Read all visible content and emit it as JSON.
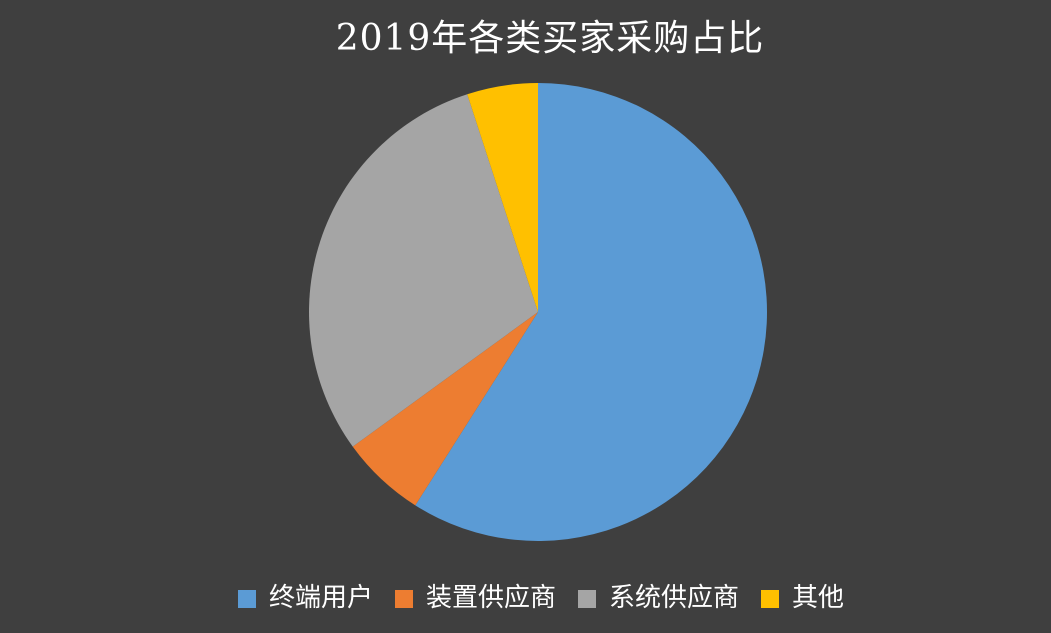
{
  "page": {
    "background_color": "#3F3F3F",
    "text_color": "#FFFFFF"
  },
  "chart_data": {
    "type": "pie",
    "title": "2019年各类买家采购占比",
    "labels": [
      "终端用户",
      "装置供应商",
      "系统供应商",
      "其他"
    ],
    "values": [
      59,
      6,
      30,
      5
    ],
    "unit": "%",
    "colors": [
      "#5B9BD5",
      "#ED7D31",
      "#A5A5A5",
      "#FFC000"
    ],
    "start_angle_deg": 0,
    "direction": "clockwise",
    "legend_position": "bottom",
    "data_labels_visible": false
  }
}
